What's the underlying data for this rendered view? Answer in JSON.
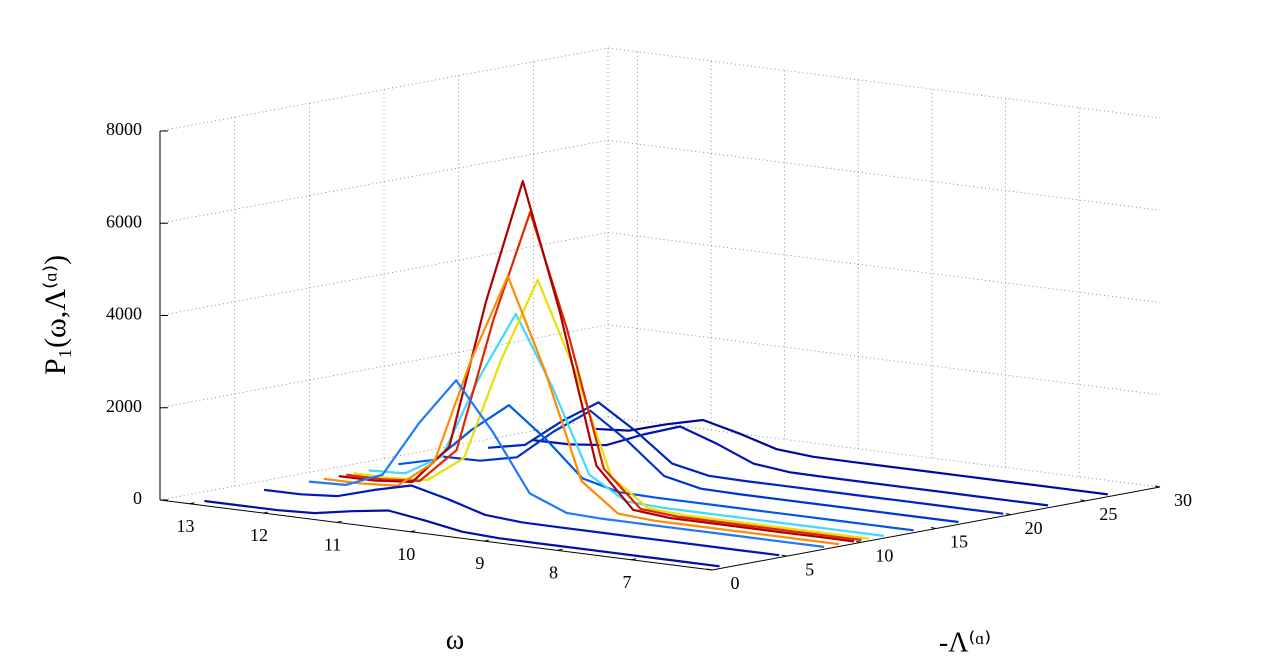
{
  "chart_data": {
    "type": "waterfall3d",
    "xlabel": "ω",
    "ylabel": "-Λ⁽ᵅ⁾",
    "zlabel": "P₁(ω,Λ⁽ᵅ⁾)",
    "xlim": [
      5.9,
      13.4
    ],
    "xticks": [
      7,
      8,
      9,
      10,
      11,
      12,
      13
    ],
    "ylim": [
      0,
      30
    ],
    "yticks": [
      0,
      5,
      10,
      15,
      20,
      25,
      30
    ],
    "zlim": [
      0,
      8000
    ],
    "zticks": [
      0,
      2000,
      4000,
      6000,
      8000
    ],
    "grid": true,
    "x": [
      6,
      6.5,
      7,
      7.5,
      8,
      8.5,
      9,
      9.5,
      10,
      10.5,
      11,
      11.5,
      12,
      12.5,
      13
    ],
    "series": [
      {
        "y": 1,
        "color": "#0010a8",
        "values": [
          0,
          0,
          0,
          0,
          0,
          0,
          3,
          41,
          182,
          300,
          182,
          41,
          3,
          0,
          0
        ]
      },
      {
        "y": 5,
        "color": "#0018b8",
        "values": [
          0,
          0,
          0,
          0,
          0,
          0,
          0,
          6,
          68,
          304,
          500,
          304,
          68,
          6,
          0
        ]
      },
      {
        "y": 8,
        "color": "#1e78ff",
        "values": [
          0,
          0,
          0,
          0,
          0,
          0,
          1,
          29,
          351,
          1578,
          2600,
          1578,
          351,
          29,
          1
        ]
      },
      {
        "y": 9,
        "color": "#ff8c00",
        "values": [
          0,
          0,
          0,
          0,
          0,
          1,
          54,
          662,
          2974,
          4900,
          2974,
          662,
          54,
          1,
          0
        ]
      },
      {
        "y": 10,
        "color": "#b00000",
        "values": [
          0,
          0,
          0,
          0,
          0,
          2,
          76,
          932,
          4188,
          6900,
          4188,
          932,
          76,
          2,
          0
        ]
      },
      {
        "y": 10.5,
        "color": "#e02800",
        "values": [
          0,
          0,
          0,
          0,
          0,
          2,
          68,
          837,
          3763,
          6200,
          3763,
          837,
          68,
          2,
          0
        ]
      },
      {
        "y": 11,
        "color": "#e8e000",
        "values": [
          0,
          0,
          0,
          0,
          0,
          1,
          52,
          635,
          2853,
          4700,
          2853,
          635,
          52,
          1,
          0
        ]
      },
      {
        "y": 12,
        "color": "#40d8ff",
        "values": [
          0,
          0,
          0,
          0,
          0,
          0,
          1,
          42,
          513,
          2307,
          3800,
          2307,
          513,
          42,
          1
        ]
      },
      {
        "y": 14,
        "color": "#0058e8",
        "values": [
          0,
          0,
          0,
          0,
          0,
          0,
          0,
          0,
          18,
          216,
          971,
          1600,
          971,
          216,
          18
        ]
      },
      {
        "y": 17,
        "color": "#0034d0",
        "values": [
          0,
          0,
          0,
          0,
          0,
          0,
          0,
          15,
          189,
          850,
          1400,
          850,
          189,
          15,
          0
        ]
      },
      {
        "y": 20,
        "color": "#0024c0",
        "values": [
          0,
          0,
          0,
          0,
          0,
          0,
          0,
          0,
          14,
          176,
          789,
          1300,
          789,
          176,
          14
        ]
      },
      {
        "y": 23,
        "color": "#0014b0",
        "values": [
          0,
          0,
          0,
          0,
          0,
          0,
          0,
          8,
          95,
          425,
          700,
          425,
          95,
          8,
          0
        ]
      },
      {
        "y": 27,
        "color": "#0008a0",
        "values": [
          0,
          0,
          0,
          0,
          0,
          0,
          0,
          0,
          6,
          68,
          304,
          500,
          304,
          68,
          6
        ]
      }
    ]
  }
}
